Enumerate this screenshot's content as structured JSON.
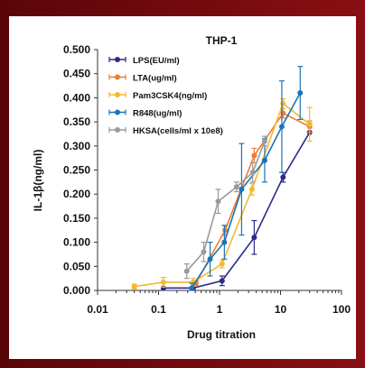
{
  "chart_data": {
    "type": "line",
    "title": "THP-1",
    "xlabel": "Drug titration",
    "ylabel": "IL-1β(ng/ml)",
    "x_scale": "log",
    "xlim": [
      0.01,
      100
    ],
    "ylim": [
      0,
      0.5
    ],
    "x_ticks": [
      "0.01",
      "0.1",
      "1",
      "10",
      "100"
    ],
    "y_ticks": [
      "0.000",
      "0.050",
      "0.100",
      "0.150",
      "0.200",
      "0.250",
      "0.300",
      "0.350",
      "0.400",
      "0.450",
      "0.500"
    ],
    "legend_position": "top-left",
    "series": [
      {
        "name": "LPS(EU/ml)",
        "color": "#2d2a8a",
        "points": [
          {
            "x": 0.12,
            "y": 0.005,
            "err": 0
          },
          {
            "x": 0.37,
            "y": 0.005,
            "err": 0
          },
          {
            "x": 1.1,
            "y": 0.02,
            "err": 0.01
          },
          {
            "x": 3.7,
            "y": 0.11,
            "err": 0.035
          },
          {
            "x": 11,
            "y": 0.235,
            "err": 0.01
          },
          {
            "x": 30,
            "y": 0.328,
            "err": 0
          }
        ]
      },
      {
        "name": "LTA(ug/ml)",
        "color": "#ef7d32",
        "points": [
          {
            "x": 0.41,
            "y": 0.015,
            "err": 0.005
          },
          {
            "x": 1.23,
            "y": 0.125,
            "err": 0.01
          },
          {
            "x": 3.7,
            "y": 0.28,
            "err": 0.015
          },
          {
            "x": 11,
            "y": 0.368,
            "err": 0.01
          },
          {
            "x": 30,
            "y": 0.34,
            "err": 0.012
          }
        ]
      },
      {
        "name": "Pam3CSK4(ng/ml)",
        "color": "#f5b82e",
        "points": [
          {
            "x": 0.04,
            "y": 0.008,
            "err": 0.005
          },
          {
            "x": 0.12,
            "y": 0.017,
            "err": 0.01
          },
          {
            "x": 0.37,
            "y": 0.017,
            "err": 0.008
          },
          {
            "x": 1.1,
            "y": 0.055,
            "err": 0.008
          },
          {
            "x": 3.4,
            "y": 0.21,
            "err": 0.012
          },
          {
            "x": 11,
            "y": 0.388,
            "err": 0.01
          },
          {
            "x": 30,
            "y": 0.345,
            "err": 0.035
          }
        ]
      },
      {
        "name": "R848(ug/ml)",
        "color": "#1a73b8",
        "points": [
          {
            "x": 0.35,
            "y": 0.005,
            "err": 0.01
          },
          {
            "x": 0.7,
            "y": 0.065,
            "err": 0.035
          },
          {
            "x": 1.2,
            "y": 0.1,
            "err": 0.035
          },
          {
            "x": 2.3,
            "y": 0.21,
            "err": 0.095
          },
          {
            "x": 5.5,
            "y": 0.27,
            "err": 0.045
          },
          {
            "x": 10.5,
            "y": 0.34,
            "err": 0.095
          },
          {
            "x": 21,
            "y": 0.41,
            "err": 0.055
          }
        ]
      },
      {
        "name": "HKSA(cells/ml x 10e8)",
        "color": "#9a9a9a",
        "points": [
          {
            "x": 0.29,
            "y": 0.04,
            "err": 0.015
          },
          {
            "x": 0.55,
            "y": 0.08,
            "err": 0.02
          },
          {
            "x": 0.95,
            "y": 0.185,
            "err": 0.025
          },
          {
            "x": 1.9,
            "y": 0.215,
            "err": 0.01
          },
          {
            "x": 3.5,
            "y": 0.245,
            "err": 0.02
          },
          {
            "x": 5.5,
            "y": 0.31,
            "err": 0.01
          }
        ]
      }
    ]
  }
}
